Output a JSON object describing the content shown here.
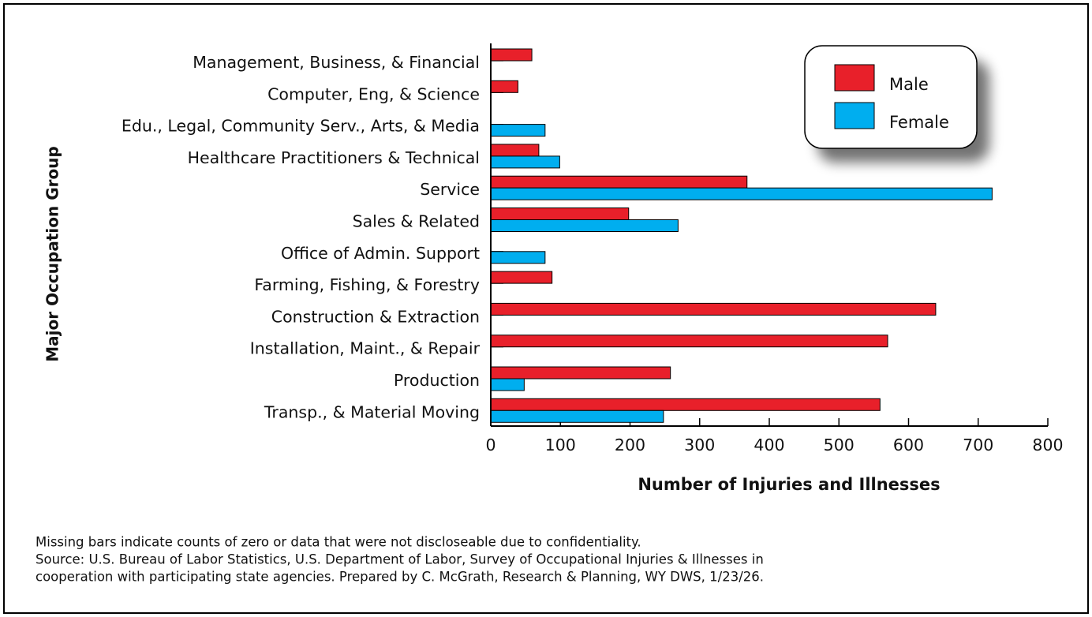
{
  "chart_data": {
    "type": "bar",
    "orientation": "horizontal",
    "ylabel": "Major Occupation Group",
    "xlabel": "Number of Injuries and Illnesses",
    "categories": [
      "Management, Business, & Financial",
      "Computer, Eng, & Science",
      "Edu., Legal, Community Serv., Arts, & Media",
      "Healthcare Practitioners & Technical",
      "Service",
      "Sales & Related",
      "Office of Admin. Support",
      "Farming, Fishing, & Forestry",
      "Construction & Extraction",
      "Installation, Maint., & Repair",
      "Production",
      "Transp., & Material Moving"
    ],
    "series": [
      {
        "name": "Male",
        "color": "#e8202a",
        "values": [
          59,
          39,
          null,
          69,
          368,
          198,
          null,
          88,
          639,
          570,
          258,
          559
        ]
      },
      {
        "name": "Female",
        "color": "#00aeef",
        "values": [
          null,
          null,
          78,
          99,
          720,
          269,
          78,
          null,
          null,
          null,
          48,
          248
        ]
      }
    ],
    "xlim": [
      0,
      800
    ],
    "xticks": [
      0,
      100,
      200,
      300,
      400,
      500,
      600,
      700,
      800
    ],
    "legend": "upper right",
    "notes": [
      "Missing bars indicate counts of zero or data that were not discloseable due to confidentiality.",
      "Source: U.S. Bureau of Labor Statistics, U.S. Department of Labor, Survey of Occupational Injuries & Illnesses in",
      "cooperation with participating state agencies. Prepared by C. McGrath, Research & Planning, WY DWS, 1/23/26."
    ]
  }
}
